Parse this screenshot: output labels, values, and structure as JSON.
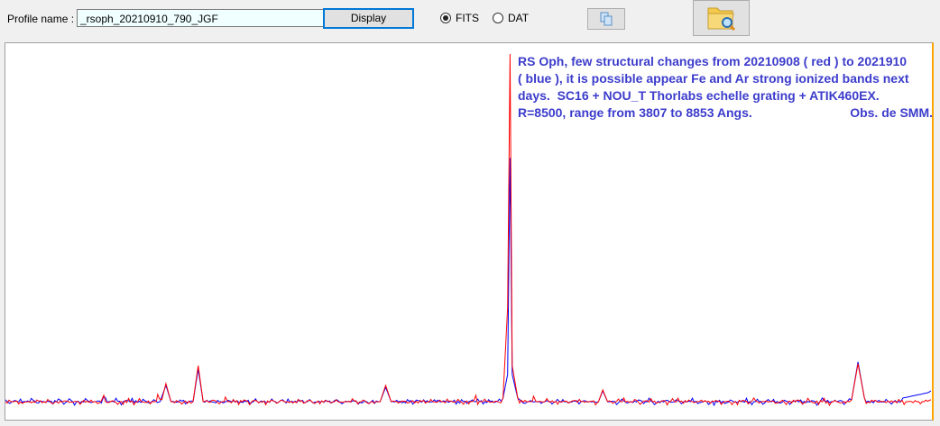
{
  "toolbar": {
    "profile_label": "Profile name :",
    "profile_value": "_rsoph_20210910_790_JGF",
    "display_label": "Display",
    "radio_fits": "FITS",
    "radio_dat": "DAT",
    "selected_format": "FITS",
    "copy_icon": "copy-icon",
    "open_icon": "folder-search-icon"
  },
  "chart_data": {
    "type": "line",
    "annotation": {
      "line1": "RS Oph, few structural changes from 20210908 ( red ) to 2021910",
      "line2": "( blue ), it is possible appear Fe and Ar strong ionized bands next",
      "line3": "days.  SC16 + NOU_T Thorlabs echelle grating + ATIK460EX.",
      "line4": "R=8500, range from 3807 to 8853 Angs.",
      "line5": "Obs. de SMM."
    },
    "xlim": [
      3807,
      8853
    ],
    "ylim": [
      0,
      20.85
    ],
    "grid": false,
    "axes_visible": false,
    "series": [
      {
        "color": "#0000ff",
        "x": [
          3807,
          3830,
          4300,
          4343,
          4380,
          4650,
          4682,
          4710,
          4830,
          4858,
          4885,
          5850,
          5880,
          5910,
          6520,
          6545,
          6558,
          6570,
          6600,
          7040,
          7064,
          7090,
          8420,
          8455,
          8490,
          8700,
          8838,
          8853
        ],
        "y": [
          1.1,
          0.9,
          1.0,
          1.3,
          1.0,
          1.0,
          1.9,
          1.0,
          1.0,
          2.8,
          1.0,
          1.0,
          1.8,
          1.0,
          1.2,
          2.5,
          14.5,
          2.5,
          1.2,
          1.0,
          1.6,
          1.0,
          1.1,
          3.2,
          1.2,
          1.2,
          1.5,
          1.6
        ]
      },
      {
        "color": "#ff0000",
        "x": [
          3807,
          3850,
          3900,
          4300,
          4343,
          4380,
          4620,
          4637,
          4660,
          4682,
          4710,
          4830,
          4858,
          4885,
          4990,
          5006,
          5020,
          5850,
          5880,
          5910,
          6350,
          6372,
          6390,
          6520,
          6545,
          6558,
          6570,
          6600,
          6670,
          6686,
          6700,
          7040,
          7064,
          7090,
          8420,
          8455,
          8490,
          8853
        ],
        "y": [
          1.0,
          1.0,
          0.9,
          1.0,
          1.35,
          1.0,
          1.0,
          1.4,
          1.1,
          2.0,
          1.0,
          1.0,
          3.0,
          1.0,
          1.0,
          1.25,
          1.0,
          1.0,
          1.9,
          1.0,
          1.0,
          1.35,
          1.0,
          1.2,
          6.2,
          20.25,
          3.0,
          1.2,
          1.0,
          1.3,
          1.0,
          1.0,
          1.65,
          1.0,
          1.1,
          3.1,
          1.2,
          1.1
        ]
      }
    ]
  }
}
